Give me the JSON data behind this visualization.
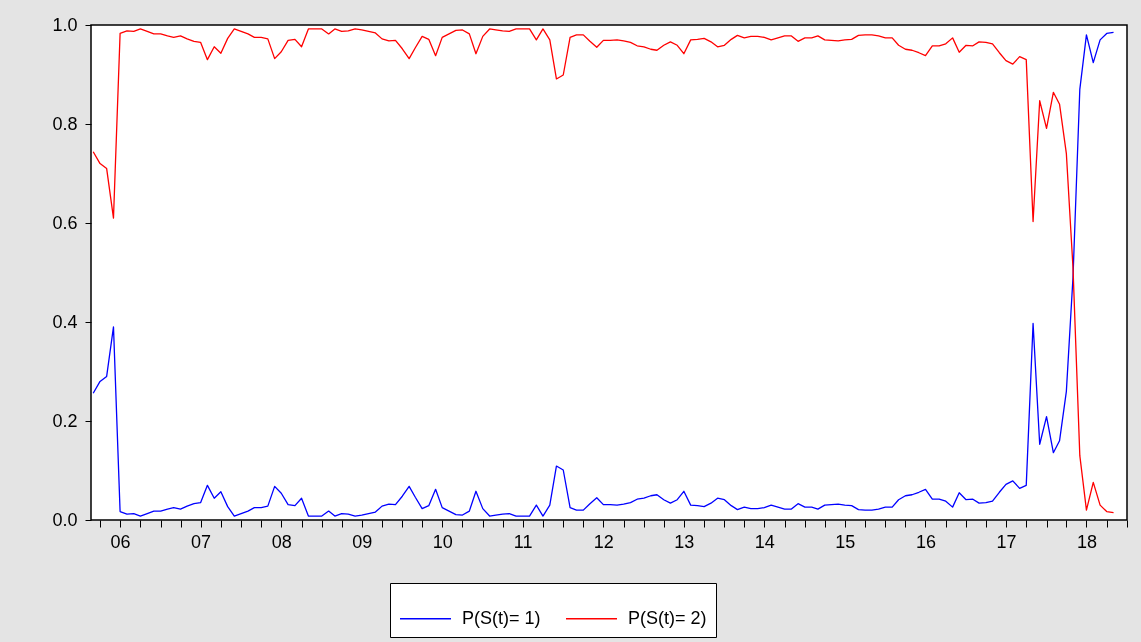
{
  "chart_data": {
    "type": "line",
    "x": [
      "2006-03",
      "2006-04",
      "2006-05",
      "2006-06",
      "2006-07",
      "2006-08",
      "2006-09",
      "2006-10",
      "2006-11",
      "2006-12",
      "2007-01",
      "2007-02",
      "2007-03",
      "2007-04",
      "2007-05",
      "2007-06",
      "2007-07",
      "2007-08",
      "2007-09",
      "2007-10",
      "2007-11",
      "2007-12",
      "2008-01",
      "2008-02",
      "2008-03",
      "2008-04",
      "2008-05",
      "2008-06",
      "2008-07",
      "2008-08",
      "2008-09",
      "2008-10",
      "2008-11",
      "2008-12",
      "2009-01",
      "2009-02",
      "2009-03",
      "2009-04",
      "2009-05",
      "2009-06",
      "2009-07",
      "2009-08",
      "2009-09",
      "2009-10",
      "2009-11",
      "2009-12",
      "2010-01",
      "2010-02",
      "2010-03",
      "2010-04",
      "2010-05",
      "2010-06",
      "2010-07",
      "2010-08",
      "2010-09",
      "2010-10",
      "2010-11",
      "2010-12",
      "2011-01",
      "2011-02",
      "2011-03",
      "2011-04",
      "2011-05",
      "2011-06",
      "2011-07",
      "2011-08",
      "2011-09",
      "2011-10",
      "2011-11",
      "2011-12",
      "2012-01",
      "2012-02",
      "2012-03",
      "2012-04",
      "2012-05",
      "2012-06",
      "2012-07",
      "2012-08",
      "2012-09",
      "2012-10",
      "2012-11",
      "2012-12",
      "2013-01",
      "2013-02",
      "2013-03",
      "2013-04",
      "2013-05",
      "2013-06",
      "2013-07",
      "2013-08",
      "2013-09",
      "2013-10",
      "2013-11",
      "2013-12",
      "2014-01",
      "2014-02",
      "2014-03",
      "2014-04",
      "2014-05",
      "2014-06",
      "2014-07",
      "2014-08",
      "2014-09",
      "2014-10",
      "2014-11",
      "2014-12",
      "2015-01",
      "2015-02",
      "2015-03",
      "2015-04",
      "2015-05",
      "2015-06",
      "2015-07",
      "2015-08",
      "2015-09",
      "2015-10",
      "2015-11",
      "2015-12",
      "2016-01",
      "2016-02",
      "2016-03",
      "2016-04",
      "2016-05",
      "2016-06",
      "2016-07",
      "2016-08",
      "2016-09",
      "2016-10",
      "2016-11",
      "2016-12",
      "2017-01",
      "2017-02",
      "2017-03",
      "2017-04",
      "2017-05",
      "2017-06",
      "2017-07",
      "2017-08",
      "2017-09",
      "2017-10",
      "2017-11",
      "2017-12",
      "2018-01",
      "2018-02",
      "2018-03",
      "2018-04",
      "2018-05",
      "2018-06",
      "2018-07",
      "2018-08",
      "2018-09",
      "2018-10",
      "2018-11"
    ],
    "series": [
      {
        "name": "P(S(t)= 1)",
        "color": "#0000ff",
        "values": [
          0.256,
          0.28,
          0.29,
          0.39,
          0.017,
          0.012,
          0.013,
          0.008,
          0.013,
          0.018,
          0.018,
          0.022,
          0.025,
          0.022,
          0.028,
          0.033,
          0.035,
          0.07,
          0.044,
          0.057,
          0.027,
          0.008,
          0.013,
          0.018,
          0.025,
          0.025,
          0.028,
          0.068,
          0.054,
          0.031,
          0.029,
          0.044,
          0.008,
          0.008,
          0.008,
          0.018,
          0.008,
          0.013,
          0.012,
          0.008,
          0.01,
          0.013,
          0.016,
          0.028,
          0.032,
          0.031,
          0.048,
          0.068,
          0.046,
          0.023,
          0.029,
          0.062,
          0.025,
          0.018,
          0.011,
          0.01,
          0.018,
          0.058,
          0.023,
          0.008,
          0.01,
          0.012,
          0.013,
          0.008,
          0.008,
          0.008,
          0.03,
          0.008,
          0.03,
          0.109,
          0.101,
          0.025,
          0.02,
          0.02,
          0.033,
          0.045,
          0.031,
          0.031,
          0.03,
          0.032,
          0.035,
          0.042,
          0.044,
          0.049,
          0.051,
          0.041,
          0.034,
          0.041,
          0.058,
          0.03,
          0.029,
          0.027,
          0.034,
          0.044,
          0.041,
          0.029,
          0.021,
          0.026,
          0.023,
          0.023,
          0.025,
          0.03,
          0.026,
          0.022,
          0.022,
          0.033,
          0.026,
          0.026,
          0.022,
          0.03,
          0.031,
          0.032,
          0.03,
          0.029,
          0.021,
          0.02,
          0.02,
          0.022,
          0.026,
          0.026,
          0.041,
          0.049,
          0.051,
          0.056,
          0.062,
          0.042,
          0.042,
          0.038,
          0.026,
          0.055,
          0.041,
          0.042,
          0.034,
          0.035,
          0.038,
          0.056,
          0.072,
          0.079,
          0.064,
          0.07,
          0.397,
          0.153,
          0.209,
          0.136,
          0.16,
          0.26,
          0.49,
          0.87,
          0.98,
          0.924,
          0.97,
          0.983,
          0.985
        ]
      },
      {
        "name": "P(S(t)= 2)",
        "color": "#ff0000",
        "values": [
          0.744,
          0.72,
          0.71,
          0.61,
          0.983,
          0.988,
          0.987,
          0.992,
          0.987,
          0.982,
          0.982,
          0.978,
          0.975,
          0.978,
          0.972,
          0.967,
          0.965,
          0.93,
          0.956,
          0.943,
          0.973,
          0.992,
          0.987,
          0.982,
          0.975,
          0.975,
          0.972,
          0.932,
          0.946,
          0.969,
          0.971,
          0.956,
          0.992,
          0.992,
          0.992,
          0.982,
          0.992,
          0.987,
          0.988,
          0.992,
          0.99,
          0.987,
          0.984,
          0.972,
          0.968,
          0.969,
          0.952,
          0.932,
          0.954,
          0.977,
          0.971,
          0.938,
          0.975,
          0.982,
          0.989,
          0.99,
          0.982,
          0.942,
          0.977,
          0.992,
          0.99,
          0.988,
          0.987,
          0.992,
          0.992,
          0.992,
          0.97,
          0.992,
          0.97,
          0.891,
          0.899,
          0.975,
          0.98,
          0.98,
          0.967,
          0.955,
          0.969,
          0.969,
          0.97,
          0.968,
          0.965,
          0.958,
          0.956,
          0.951,
          0.949,
          0.959,
          0.966,
          0.959,
          0.942,
          0.97,
          0.971,
          0.973,
          0.966,
          0.956,
          0.959,
          0.971,
          0.979,
          0.974,
          0.977,
          0.977,
          0.975,
          0.97,
          0.974,
          0.978,
          0.978,
          0.967,
          0.974,
          0.974,
          0.978,
          0.97,
          0.969,
          0.968,
          0.97,
          0.971,
          0.979,
          0.98,
          0.98,
          0.978,
          0.974,
          0.974,
          0.959,
          0.951,
          0.949,
          0.944,
          0.938,
          0.958,
          0.958,
          0.962,
          0.974,
          0.945,
          0.959,
          0.958,
          0.966,
          0.965,
          0.962,
          0.944,
          0.928,
          0.921,
          0.936,
          0.93,
          0.603,
          0.847,
          0.791,
          0.864,
          0.84,
          0.74,
          0.51,
          0.13,
          0.02,
          0.076,
          0.03,
          0.017,
          0.015
        ]
      }
    ],
    "xlim": [
      "2006-02-19",
      "2019-01"
    ],
    "xticks": [
      {
        "value": "2006-04",
        "label": null
      },
      {
        "value": "2006-07",
        "label": "06"
      },
      {
        "value": "2006-10",
        "label": null
      },
      {
        "value": "2007-01",
        "label": null
      },
      {
        "value": "2007-04",
        "label": null
      },
      {
        "value": "2007-07",
        "label": "07"
      },
      {
        "value": "2007-10",
        "label": null
      },
      {
        "value": "2008-01",
        "label": null
      },
      {
        "value": "2008-04",
        "label": null
      },
      {
        "value": "2008-07",
        "label": "08"
      },
      {
        "value": "2008-10",
        "label": null
      },
      {
        "value": "2009-01",
        "label": null
      },
      {
        "value": "2009-04",
        "label": null
      },
      {
        "value": "2009-07",
        "label": "09"
      },
      {
        "value": "2009-10",
        "label": null
      },
      {
        "value": "2010-01",
        "label": null
      },
      {
        "value": "2010-04",
        "label": null
      },
      {
        "value": "2010-07",
        "label": "10"
      },
      {
        "value": "2010-10",
        "label": null
      },
      {
        "value": "2011-01",
        "label": null
      },
      {
        "value": "2011-04",
        "label": null
      },
      {
        "value": "2011-07",
        "label": "11"
      },
      {
        "value": "2011-10",
        "label": null
      },
      {
        "value": "2012-01",
        "label": null
      },
      {
        "value": "2012-04",
        "label": null
      },
      {
        "value": "2012-07",
        "label": "12"
      },
      {
        "value": "2012-10",
        "label": null
      },
      {
        "value": "2013-01",
        "label": null
      },
      {
        "value": "2013-04",
        "label": null
      },
      {
        "value": "2013-07",
        "label": "13"
      },
      {
        "value": "2013-10",
        "label": null
      },
      {
        "value": "2014-01",
        "label": null
      },
      {
        "value": "2014-04",
        "label": null
      },
      {
        "value": "2014-07",
        "label": "14"
      },
      {
        "value": "2014-10",
        "label": null
      },
      {
        "value": "2015-01",
        "label": null
      },
      {
        "value": "2015-04",
        "label": null
      },
      {
        "value": "2015-07",
        "label": "15"
      },
      {
        "value": "2015-10",
        "label": null
      },
      {
        "value": "2016-01",
        "label": null
      },
      {
        "value": "2016-04",
        "label": null
      },
      {
        "value": "2016-07",
        "label": "16"
      },
      {
        "value": "2016-10",
        "label": null
      },
      {
        "value": "2017-01",
        "label": null
      },
      {
        "value": "2017-04",
        "label": null
      },
      {
        "value": "2017-07",
        "label": "17"
      },
      {
        "value": "2017-10",
        "label": null
      },
      {
        "value": "2018-01",
        "label": null
      },
      {
        "value": "2018-04",
        "label": null
      },
      {
        "value": "2018-07",
        "label": "18"
      },
      {
        "value": "2018-10",
        "label": null
      },
      {
        "value": "2019-01",
        "label": null
      }
    ],
    "ylim": [
      0,
      1
    ],
    "yticks": [
      {
        "value": 0,
        "label": "0.0"
      },
      {
        "value": 0.2,
        "label": "0.2"
      },
      {
        "value": 0.4,
        "label": "0.4"
      },
      {
        "value": 0.6,
        "label": "0.6"
      },
      {
        "value": 0.8,
        "label": "0.8"
      },
      {
        "value": 1,
        "label": "1.0"
      }
    ],
    "legend": "bottom",
    "line_style": "solid"
  }
}
